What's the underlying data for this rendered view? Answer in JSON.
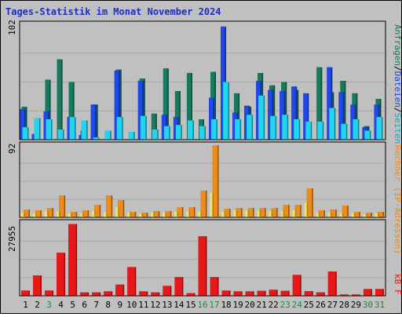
{
  "chart_data": [
    {
      "type": "bar",
      "title": "Tages-Statistik im Monat November 2024",
      "categories": [
        "1",
        "2",
        "3",
        "4",
        "5",
        "6",
        "7",
        "8",
        "9",
        "10",
        "11",
        "12",
        "13",
        "14",
        "15",
        "16",
        "17",
        "18",
        "19",
        "20",
        "21",
        "22",
        "23",
        "24",
        "25",
        "26",
        "27",
        "28",
        "29",
        "30",
        "31"
      ],
      "weekend_days": [
        "3",
        "16",
        "17",
        "23",
        "24",
        "30",
        "31"
      ],
      "ylabel_max": "102",
      "ylim": [
        0,
        102
      ],
      "right_label": {
        "anfragen": "Anfragen",
        "sep1": "/",
        "dateien": "Dateien",
        "sep2": "/",
        "seiten": "Seiten"
      },
      "series": [
        {
          "name": "Anfragen",
          "color": "#157a5e",
          "values": [
            29,
            2,
            53,
            71,
            51,
            8,
            31,
            0,
            62,
            0,
            54,
            23,
            63,
            43,
            59,
            18,
            60,
            39,
            41,
            29,
            59,
            48,
            51,
            44,
            0,
            64,
            42,
            52,
            41,
            12,
            36
          ]
        },
        {
          "name": "Dateien",
          "color": "#1e48e8",
          "values": [
            27,
            5,
            25,
            0,
            20,
            4,
            31,
            0,
            61,
            0,
            52,
            0,
            22,
            20,
            0,
            0,
            37,
            100,
            24,
            30,
            52,
            44,
            43,
            47,
            41,
            0,
            64,
            42,
            31,
            11,
            31
          ]
        },
        {
          "name": "Seiten",
          "color": "#22d4f0",
          "values": [
            11,
            19,
            18,
            9,
            20,
            17,
            2,
            8,
            20,
            7,
            21,
            9,
            12,
            13,
            17,
            12,
            18,
            51,
            18,
            22,
            39,
            21,
            22,
            18,
            16,
            16,
            28,
            14,
            18,
            8,
            20
          ]
        }
      ]
    },
    {
      "type": "bar",
      "ylabel_max": "92",
      "ylim": [
        0,
        92
      ],
      "right_label": "Rechner (IP-Adressen)",
      "series": [
        {
          "name": "Rechner",
          "color": "#f08a18",
          "values": [
            10,
            9,
            12,
            28,
            7,
            9,
            16,
            28,
            22,
            7,
            6,
            8,
            8,
            13,
            13,
            34,
            92,
            11,
            12,
            12,
            12,
            12,
            16,
            16,
            37,
            9,
            10,
            15,
            7,
            6,
            7
          ]
        },
        {
          "name": "Rechner (hell)",
          "color": "#f2e060",
          "values": [
            6,
            5,
            8,
            8,
            5,
            5,
            8,
            6,
            13,
            6,
            5,
            6,
            6,
            7,
            8,
            7,
            31,
            7,
            9,
            9,
            9,
            8,
            8,
            9,
            19,
            6,
            6,
            5,
            5,
            4,
            5
          ]
        }
      ]
    },
    {
      "type": "bar",
      "ylabel_max": "27955",
      "ylim": [
        0,
        27955
      ],
      "right_label": "kB F",
      "series": [
        {
          "name": "kB F",
          "color": "#e81818",
          "values": [
            2015,
            7800,
            2015,
            16500,
            27500,
            1300,
            1300,
            1700,
            4300,
            11000,
            1700,
            1300,
            3800,
            7200,
            1000,
            22800,
            7200,
            2000,
            1700,
            1700,
            1900,
            2300,
            1900,
            8000,
            1800,
            1300,
            9300,
            500,
            500,
            2600,
            2600
          ]
        }
      ]
    }
  ]
}
